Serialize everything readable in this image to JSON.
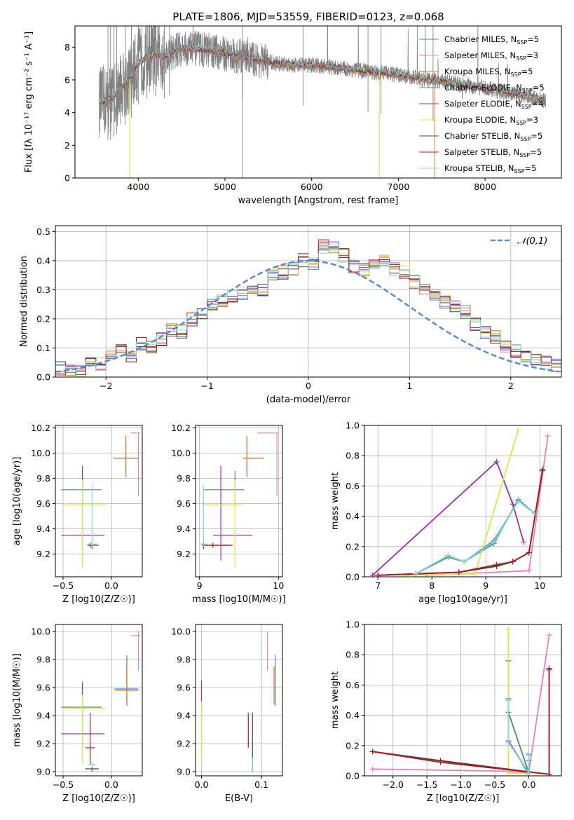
{
  "figure": {
    "title": "PLATE=1806, MJD=53559, FIBERID=0123, z=0.068"
  },
  "models": [
    {
      "name": "Chabrier MILES, N",
      "sub": "SSP",
      "tail": "=5",
      "color": "#4a7fd0"
    },
    {
      "name": "Salpeter MILES, N",
      "sub": "SSP",
      "tail": "=3",
      "color": "#e67fb8"
    },
    {
      "name": "Kroupa MILES, N",
      "sub": "SSP",
      "tail": "=5",
      "color": "#e07820"
    },
    {
      "name": "Chabrier ELODIE, N",
      "sub": "SSP",
      "tail": "=5",
      "color": "#4b8f5a"
    },
    {
      "name": "Salpeter ELODIE, N",
      "sub": "SSP",
      "tail": "=4",
      "color": "#9b2fae"
    },
    {
      "name": "Kroupa ELODIE, N",
      "sub": "SSP",
      "tail": "=3",
      "color": "#d4e84a"
    },
    {
      "name": "Chabrier STELIB, N",
      "sub": "SSP",
      "tail": "=5",
      "color": "#444444"
    },
    {
      "name": "Salpeter STELIB, N",
      "sub": "SSP",
      "tail": "=5",
      "color": "#b01818"
    },
    {
      "name": "Kroupa STELIB, N",
      "sub": "SSP",
      "tail": "=5",
      "color": "#7ed8e0"
    }
  ],
  "chart_data": [
    {
      "id": "spectrum",
      "type": "line",
      "xlabel": "wavelength [Angstrom, rest frame]",
      "ylabel": "Flux [fλ 10⁻¹⁷ erg cm⁻² s⁻¹ A⁻¹]",
      "xlim": [
        3270,
        8880
      ],
      "ylim": [
        0,
        9.3
      ],
      "xticks": [
        4000,
        5000,
        6000,
        7000,
        8000
      ],
      "yticks": [
        0,
        2,
        4,
        6,
        8
      ],
      "grid": false,
      "legend": "top-right",
      "model_continuum": [
        [
          3550,
          4.6
        ],
        [
          3700,
          4.9
        ],
        [
          3800,
          5.5
        ],
        [
          3900,
          6.0
        ],
        [
          4000,
          7.0
        ],
        [
          4100,
          7.4
        ],
        [
          4200,
          7.5
        ],
        [
          4300,
          7.4
        ],
        [
          4400,
          7.7
        ],
        [
          4500,
          7.9
        ],
        [
          4700,
          7.9
        ],
        [
          5000,
          7.6
        ],
        [
          5300,
          7.3
        ],
        [
          5600,
          7.0
        ],
        [
          6000,
          6.9
        ],
        [
          6500,
          6.6
        ],
        [
          7000,
          6.3
        ],
        [
          7500,
          5.9
        ],
        [
          8000,
          5.5
        ],
        [
          8500,
          5.0
        ],
        [
          8700,
          4.7
        ]
      ],
      "data_spikes_high": [
        3650,
        3680,
        3720,
        3750,
        3850,
        3920,
        4000,
        4100,
        4200,
        4300,
        4360,
        5200,
        5900,
        6650,
        6800,
        7400
      ]
    },
    {
      "id": "residuals",
      "type": "bar",
      "xlabel": "(data-model)/error",
      "ylabel": "Normed distribution",
      "xlim": [
        -2.5,
        2.5
      ],
      "ylim": [
        0,
        0.52
      ],
      "xticks": [
        -2,
        -1,
        0,
        1,
        2
      ],
      "yticks": [
        0.0,
        0.1,
        0.2,
        0.3,
        0.4,
        0.5
      ],
      "grid": true,
      "legend": "top-right",
      "reference_label": "𝒩(0,1)",
      "bin_width": 0.1,
      "bin_start": -2.5,
      "base_values": [
        0.028,
        0.025,
        0.018,
        0.055,
        0.045,
        0.08,
        0.09,
        0.075,
        0.115,
        0.1,
        0.13,
        0.16,
        0.155,
        0.2,
        0.22,
        0.25,
        0.26,
        0.28,
        0.29,
        0.31,
        0.3,
        0.35,
        0.36,
        0.37,
        0.4,
        0.39,
        0.45,
        0.44,
        0.42,
        0.38,
        0.37,
        0.38,
        0.4,
        0.37,
        0.36,
        0.33,
        0.31,
        0.28,
        0.26,
        0.24,
        0.22,
        0.18,
        0.15,
        0.14,
        0.11,
        0.09,
        0.07,
        0.06,
        0.05,
        0.04
      ]
    },
    {
      "id": "age_vs_Z",
      "type": "scatter",
      "xlabel": "Z [log10(Z/Z☉)]",
      "ylabel": "age  [log10(age/yr)]",
      "xlim": [
        -0.58,
        0.32
      ],
      "ylim": [
        9.02,
        10.22
      ],
      "xticks": [
        -0.5,
        0.0
      ],
      "yticks": [
        9.2,
        9.4,
        9.6,
        9.8,
        10.0,
        10.2
      ],
      "grid": true,
      "points": [
        {
          "model": 0,
          "x": 0.15,
          "y": 9.96,
          "xerr": [
            0.13,
            0.13
          ],
          "yerr": [
            0.15,
            0.15
          ]
        },
        {
          "model": 1,
          "x": 0.28,
          "y": 10.16,
          "xerr": [
            0.08,
            0.02
          ],
          "yerr": [
            0.5,
            0.0
          ]
        },
        {
          "model": 2,
          "x": 0.15,
          "y": 9.96,
          "xerr": [
            0.12,
            0.12
          ],
          "yerr": [
            0.12,
            0.18
          ]
        },
        {
          "model": 3,
          "x": -0.3,
          "y": 9.71,
          "xerr": [
            0.22,
            0.2
          ],
          "yerr": [
            0.1,
            0.15
          ]
        },
        {
          "model": 4,
          "x": -0.3,
          "y": 9.35,
          "xerr": [
            0.22,
            0.23
          ],
          "yerr": [
            0.2,
            0.55
          ]
        },
        {
          "model": 5,
          "x": -0.3,
          "y": 9.59,
          "xerr": [
            0.22,
            0.25
          ],
          "yerr": [
            0.5,
            0.2
          ]
        },
        {
          "model": 6,
          "x": -0.2,
          "y": 9.27,
          "xerr": [
            0.05,
            0.07
          ],
          "yerr": [
            0.03,
            0.03
          ]
        },
        {
          "model": 7,
          "x": -0.22,
          "y": 9.27,
          "xerr": [
            0.02,
            0.02
          ],
          "yerr": [
            0.02,
            0.02
          ]
        },
        {
          "model": 8,
          "x": -0.2,
          "y": 9.28,
          "xerr": [
            0.05,
            0.05
          ],
          "yerr": [
            0.02,
            0.47
          ]
        }
      ]
    },
    {
      "id": "age_vs_mass",
      "type": "scatter",
      "xlabel": "mass [log10(M/M☉)]",
      "ylabel": "",
      "xlim": [
        8.95,
        10.05
      ],
      "ylim": [
        9.02,
        10.22
      ],
      "xticks": [
        9,
        10
      ],
      "yticks": [
        9.2,
        9.4,
        9.6,
        9.8,
        10.0,
        10.2
      ],
      "grid": true,
      "points": [
        {
          "model": 0,
          "x": 9.6,
          "y": 9.96,
          "xerr": [
            0.05,
            0.2
          ],
          "yerr": [
            0.15,
            0.15
          ]
        },
        {
          "model": 1,
          "x": 9.98,
          "y": 10.16,
          "xerr": [
            0.25,
            0.02
          ],
          "yerr": [
            0.5,
            0.0
          ]
        },
        {
          "model": 2,
          "x": 9.6,
          "y": 9.96,
          "xerr": [
            0.05,
            0.22
          ],
          "yerr": [
            0.12,
            0.18
          ]
        },
        {
          "model": 3,
          "x": 9.45,
          "y": 9.71,
          "xerr": [
            0.4,
            0.12
          ],
          "yerr": [
            0.1,
            0.15
          ]
        },
        {
          "model": 4,
          "x": 9.27,
          "y": 9.35,
          "xerr": [
            0.1,
            0.4
          ],
          "yerr": [
            0.2,
            0.55
          ]
        },
        {
          "model": 5,
          "x": 9.45,
          "y": 9.59,
          "xerr": [
            0.42,
            0.1
          ],
          "yerr": [
            0.5,
            0.2
          ]
        },
        {
          "model": 6,
          "x": 9.05,
          "y": 9.27,
          "xerr": [
            0.02,
            0.35
          ],
          "yerr": [
            0.03,
            0.03
          ]
        },
        {
          "model": 7,
          "x": 9.17,
          "y": 9.27,
          "xerr": [
            0.1,
            0.25
          ],
          "yerr": [
            0.02,
            0.02
          ]
        },
        {
          "model": 8,
          "x": 9.05,
          "y": 9.28,
          "xerr": [
            0.05,
            0.05
          ],
          "yerr": [
            0.02,
            0.47
          ]
        }
      ]
    },
    {
      "id": "massweight_vs_age",
      "type": "line",
      "xlabel": "age  [log10(age/yr)]",
      "ylabel": "mass weight",
      "xlim": [
        6.75,
        10.4
      ],
      "ylim": [
        0,
        1.0
      ],
      "xticks": [
        7,
        8,
        9,
        10
      ],
      "yticks": [
        0.0,
        0.2,
        0.4,
        0.6,
        0.8,
        1.0
      ],
      "grid": true,
      "series": [
        {
          "model": 0,
          "x": [
            7.7,
            8.3,
            8.6,
            9.15,
            9.6,
            9.9
          ],
          "y": [
            0.02,
            0.14,
            0.1,
            0.24,
            0.5,
            0.42
          ]
        },
        {
          "model": 1,
          "x": [
            7.9,
            9.8,
            10.15
          ],
          "y": [
            0.01,
            0.04,
            0.93
          ]
        },
        {
          "model": 2,
          "x": [
            7.0,
            8.5,
            9.2,
            9.5,
            9.8,
            10.05
          ],
          "y": [
            0.01,
            0.03,
            0.07,
            0.1,
            0.16,
            0.71
          ]
        },
        {
          "model": 3,
          "x": [
            7.7,
            8.3,
            8.6,
            9.15,
            9.6,
            9.9
          ],
          "y": [
            0.02,
            0.13,
            0.1,
            0.22,
            0.51,
            0.42
          ]
        },
        {
          "model": 4,
          "x": [
            6.9,
            9.2,
            9.5,
            9.7
          ],
          "y": [
            0.01,
            0.76,
            0.48,
            0.23
          ]
        },
        {
          "model": 5,
          "x": [
            7.5,
            8.8,
            9.6
          ],
          "y": [
            0.01,
            0.02,
            0.97
          ]
        },
        {
          "model": 6,
          "x": [
            7.0,
            8.5,
            9.2,
            9.5,
            9.8,
            10.05
          ],
          "y": [
            0.01,
            0.03,
            0.07,
            0.1,
            0.16,
            0.71
          ]
        },
        {
          "model": 7,
          "x": [
            7.0,
            8.5,
            9.2,
            9.5,
            9.8,
            10.05
          ],
          "y": [
            0.01,
            0.03,
            0.08,
            0.1,
            0.16,
            0.7
          ]
        },
        {
          "model": 8,
          "x": [
            7.7,
            8.3,
            8.6,
            9.15,
            9.6,
            9.9
          ],
          "y": [
            0.02,
            0.14,
            0.1,
            0.23,
            0.5,
            0.42
          ]
        }
      ]
    },
    {
      "id": "mass_vs_Z",
      "type": "scatter",
      "xlabel": "Z [log10(Z/Z☉)]",
      "ylabel": "mass [log10(M/M☉)]",
      "xlim": [
        -0.58,
        0.32
      ],
      "ylim": [
        8.97,
        10.05
      ],
      "xticks": [
        -0.5,
        0.0
      ],
      "yticks": [
        9.0,
        9.2,
        9.4,
        9.6,
        9.8,
        10.0
      ],
      "grid": true,
      "points": [
        {
          "model": 0,
          "x": 0.16,
          "y": 9.59,
          "xerr": [
            0.13,
            0.12
          ],
          "yerr": [
            0.12,
            0.24
          ]
        },
        {
          "model": 1,
          "x": 0.28,
          "y": 9.97,
          "xerr": [
            0.08,
            0.02
          ],
          "yerr": [
            0.25,
            0.03
          ]
        },
        {
          "model": 2,
          "x": 0.16,
          "y": 9.58,
          "xerr": [
            0.12,
            0.12
          ],
          "yerr": [
            0.1,
            0.2
          ]
        },
        {
          "model": 3,
          "x": -0.3,
          "y": 9.46,
          "xerr": [
            0.22,
            0.2
          ],
          "yerr": [
            0.4,
            0.1
          ]
        },
        {
          "model": 4,
          "x": -0.3,
          "y": 9.27,
          "xerr": [
            0.22,
            0.23
          ],
          "yerr": [
            0.1,
            0.37
          ]
        },
        {
          "model": 5,
          "x": -0.3,
          "y": 9.45,
          "xerr": [
            0.22,
            0.25
          ],
          "yerr": [
            0.4,
            0.1
          ]
        },
        {
          "model": 6,
          "x": -0.2,
          "y": 9.02,
          "xerr": [
            0.07,
            0.07
          ],
          "yerr": [
            0.02,
            0.02
          ]
        },
        {
          "model": 7,
          "x": -0.22,
          "y": 9.17,
          "xerr": [
            0.05,
            0.05
          ],
          "yerr": [
            0.12,
            0.25
          ]
        },
        {
          "model": 8,
          "x": -0.2,
          "y": 9.05,
          "xerr": [
            0.05,
            0.05
          ],
          "yerr": [
            0.02,
            0.02
          ]
        }
      ]
    },
    {
      "id": "mass_vs_EBV",
      "type": "scatter",
      "xlabel": "E(B-V)",
      "ylabel": "",
      "xlim": [
        -0.01,
        0.135
      ],
      "ylim": [
        8.97,
        10.05
      ],
      "xticks": [
        0.0,
        0.1
      ],
      "yticks": [
        9.0,
        9.2,
        9.4,
        9.6,
        9.8,
        10.0
      ],
      "grid": true,
      "points": [
        {
          "model": 0,
          "x": 0.123,
          "y": 9.59,
          "xerr": [
            0,
            0
          ],
          "yerr": [
            0.12,
            0.24
          ]
        },
        {
          "model": 1,
          "x": 0.11,
          "y": 9.8,
          "xerr": [
            0,
            0
          ],
          "yerr": [
            0.08,
            0.2
          ]
        },
        {
          "model": 2,
          "x": 0.121,
          "y": 9.6,
          "xerr": [
            0,
            0
          ],
          "yerr": [
            0.12,
            0.15
          ]
        },
        {
          "model": 3,
          "x": 0.0,
          "y": 9.3,
          "xerr": [
            0,
            0
          ],
          "yerr": [
            0.25,
            0.1
          ]
        },
        {
          "model": 4,
          "x": 0.0,
          "y": 9.5,
          "xerr": [
            0,
            0
          ],
          "yerr": [
            0.1,
            0.15
          ]
        },
        {
          "model": 5,
          "x": 0.0,
          "y": 9.3,
          "xerr": [
            0,
            0
          ],
          "yerr": [
            0.25,
            0.2
          ]
        },
        {
          "model": 6,
          "x": 0.085,
          "y": 9.2,
          "xerr": [
            0,
            0
          ],
          "yerr": [
            0.2,
            0.22
          ]
        },
        {
          "model": 7,
          "x": 0.078,
          "y": 9.27,
          "xerr": [
            0,
            0
          ],
          "yerr": [
            0.1,
            0.15
          ]
        },
        {
          "model": 8,
          "x": 0.085,
          "y": 9.05,
          "xerr": [
            0,
            0
          ],
          "yerr": [
            0.05,
            0.05
          ]
        }
      ]
    },
    {
      "id": "massweight_vs_Z",
      "type": "line",
      "xlabel": "Z [log10(Z/Z☉)]",
      "ylabel": "mass weight",
      "xlim": [
        -2.42,
        0.48
      ],
      "ylim": [
        0,
        1.0
      ],
      "xticks": [
        -2.0,
        -1.5,
        -1.0,
        -0.5,
        0.0
      ],
      "yticks": [
        0.0,
        0.2,
        0.4,
        0.6,
        0.8,
        1.0
      ],
      "grid": true,
      "series": [
        {
          "model": 0,
          "x": [
            -0.3,
            -0.3,
            0.0,
            0.0
          ],
          "y": [
            0.5,
            0.23,
            0.02,
            0.14
          ]
        },
        {
          "model": 1,
          "x": [
            -2.3,
            -0.3,
            0.0,
            0.3
          ],
          "y": [
            0.045,
            0.03,
            0.02,
            0.93
          ]
        },
        {
          "model": 2,
          "x": [
            -2.3,
            -1.3,
            0.3,
            0.3
          ],
          "y": [
            0.16,
            0.1,
            0.01,
            0.71
          ]
        },
        {
          "model": 3,
          "x": [
            -0.3,
            -0.3,
            0.0,
            0.0
          ],
          "y": [
            0.51,
            0.42,
            0.02,
            0.1
          ]
        },
        {
          "model": 4,
          "x": [
            -0.3,
            -0.3,
            0.0
          ],
          "y": [
            0.76,
            0.23,
            0.01
          ]
        },
        {
          "model": 5,
          "x": [
            -0.3,
            -0.3,
            0.0
          ],
          "y": [
            0.97,
            0.02,
            0.01
          ]
        },
        {
          "model": 6,
          "x": [
            -2.3,
            -1.3,
            0.3,
            0.3
          ],
          "y": [
            0.16,
            0.1,
            0.01,
            0.71
          ]
        },
        {
          "model": 7,
          "x": [
            -2.3,
            -1.3,
            0.3,
            0.3
          ],
          "y": [
            0.16,
            0.09,
            0.01,
            0.7
          ]
        },
        {
          "model": 8,
          "x": [
            -0.3,
            -0.3,
            0.0,
            0.0
          ],
          "y": [
            0.5,
            0.22,
            0.02,
            0.15
          ]
        }
      ]
    }
  ]
}
